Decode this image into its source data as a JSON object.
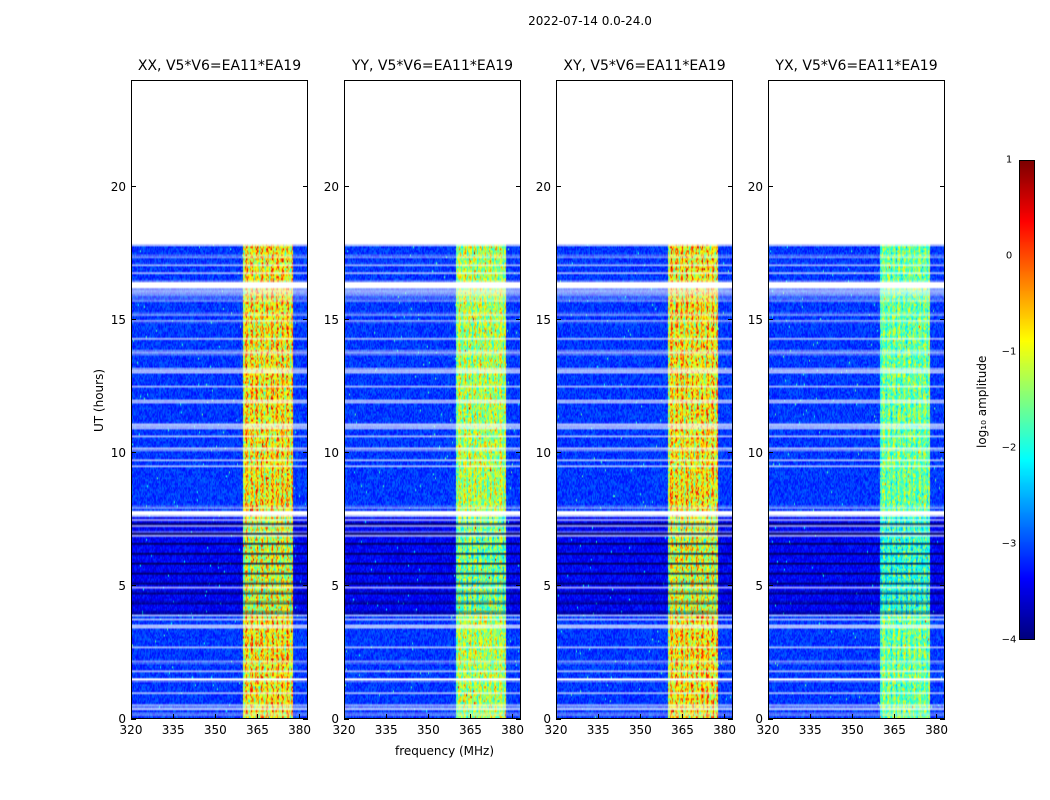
{
  "chart_data": {
    "type": "heatmap",
    "suptitle": "2022-07-14 0.0-24.0",
    "panels": [
      {
        "title": "XX, V5*V6=EA11*EA19",
        "band_strength": 1.0
      },
      {
        "title": "YY, V5*V6=EA11*EA19",
        "band_strength": 0.8
      },
      {
        "title": "XY, V5*V6=EA11*EA19",
        "band_strength": 1.0
      },
      {
        "title": "YX, V5*V6=EA11*EA19",
        "band_strength": 0.65
      }
    ],
    "xlabel": "frequency (MHz)",
    "ylabel": "UT (hours)",
    "xlim": [
      320,
      383
    ],
    "ylim": [
      0,
      24
    ],
    "xticks": [
      320,
      335,
      350,
      365,
      380
    ],
    "yticks": [
      0,
      5,
      10,
      15,
      20
    ],
    "colorbar": {
      "label": "log₁₀ amplitude",
      "range": [
        -4,
        1
      ],
      "ticks": [
        {
          "value": 1,
          "label": "1"
        },
        {
          "value": 0,
          "label": "0"
        },
        {
          "value": -1,
          "label": "−1"
        },
        {
          "value": -2,
          "label": "−2"
        },
        {
          "value": -3,
          "label": "−3"
        },
        {
          "value": -4,
          "label": "−4"
        }
      ],
      "colormap": "jet"
    },
    "rfi_band_mhz": [
      360,
      378
    ],
    "flagged_hours": [
      [
        21.0,
        24.0,
        "no_data"
      ],
      [
        17.8,
        21.0,
        "flagged"
      ],
      [
        16.2,
        16.45,
        "flagged"
      ],
      [
        7.6,
        7.8,
        "flagged"
      ],
      [
        1.4,
        1.5,
        "flagged"
      ],
      [
        3.4,
        3.5,
        "flagged"
      ]
    ]
  }
}
